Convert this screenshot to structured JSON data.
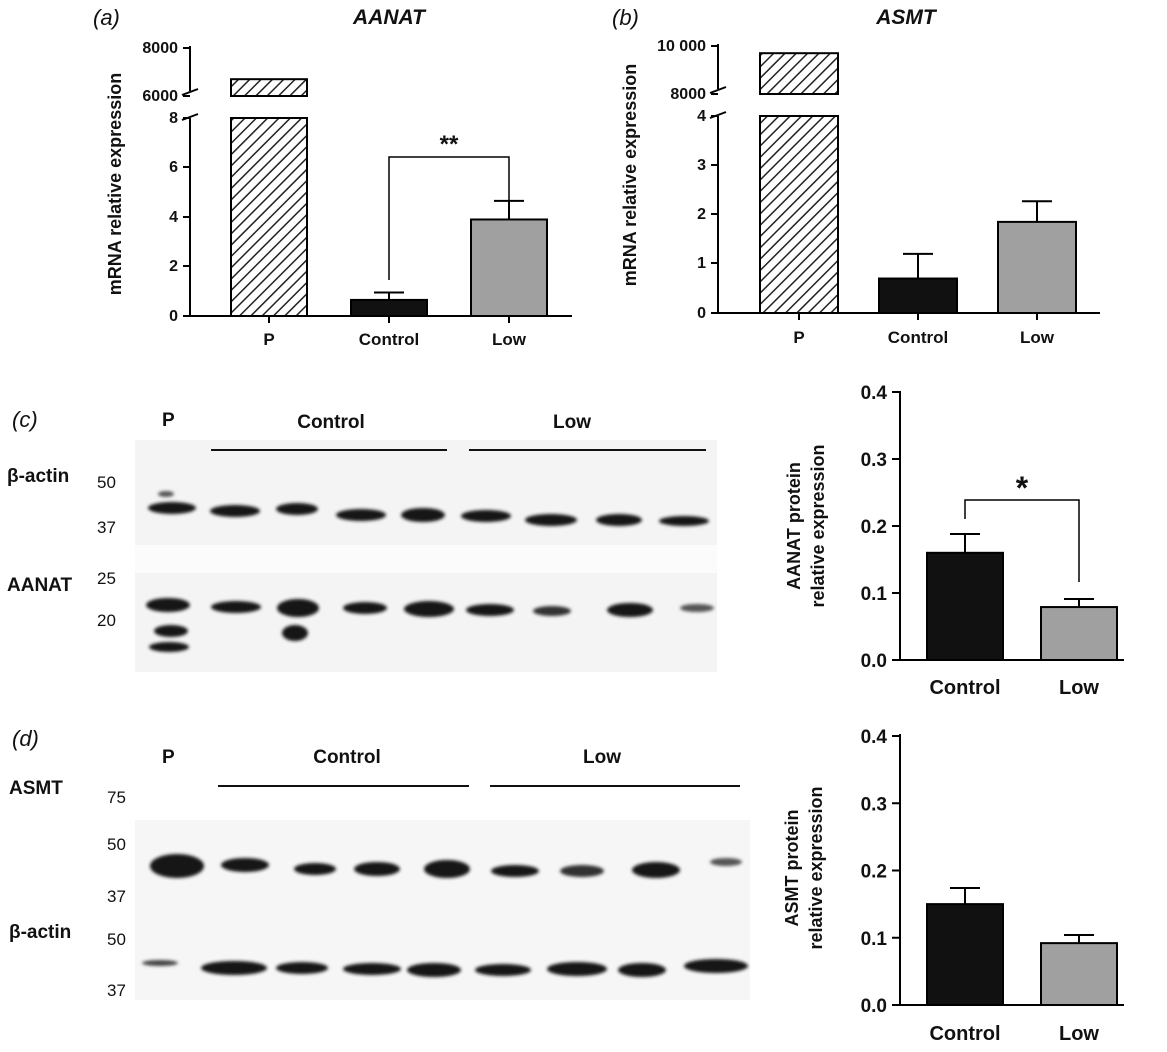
{
  "colors": {
    "control": "#111111",
    "low": "#a0a0a0",
    "hatch": "#222222",
    "axis": "#000000",
    "blot_bg": "#f4f4f4"
  },
  "chart_data": [
    {
      "panel": "(a)",
      "type": "bar",
      "title": "AANAT",
      "ylabel": "mRNA relative expression",
      "categories": [
        "P",
        "Control",
        "Low"
      ],
      "values": [
        6700,
        0.65,
        3.9
      ],
      "errors": [
        null,
        0.3,
        0.75
      ],
      "broken_axis": {
        "lower_ticks": [
          "0",
          "2",
          "4",
          "6",
          "8"
        ],
        "upper_ticks": [
          "6000",
          "8000"
        ]
      },
      "significance": "**"
    },
    {
      "panel": "(b)",
      "type": "bar",
      "title": "ASMT",
      "ylabel": "mRNA relative expression",
      "categories": [
        "P",
        "Control",
        "Low"
      ],
      "values": [
        9700,
        0.7,
        1.85
      ],
      "errors": [
        null,
        0.5,
        0.42
      ],
      "broken_axis": {
        "lower_ticks": [
          "0",
          "1",
          "2",
          "3",
          "4"
        ],
        "upper_ticks": [
          "8000",
          "10 000"
        ]
      }
    },
    {
      "panel": "(c)",
      "type": "bar",
      "ylabel_line1": "AANAT protein",
      "ylabel_line2": "relative expression",
      "categories": [
        "Control",
        "Low"
      ],
      "values": [
        0.16,
        0.079
      ],
      "errors": [
        0.028,
        0.012
      ],
      "ylim": [
        0,
        0.4
      ],
      "ticks": [
        "0.0",
        "0.1",
        "0.2",
        "0.3",
        "0.4"
      ],
      "significance": "*"
    },
    {
      "panel": "(d)",
      "type": "bar",
      "ylabel_line1": "ASMT protein",
      "ylabel_line2": "relative expression",
      "categories": [
        "Control",
        "Low"
      ],
      "values": [
        0.15,
        0.092
      ],
      "errors": [
        0.024,
        0.012
      ],
      "ylim": [
        0,
        0.4
      ],
      "ticks": [
        "0.0",
        "0.1",
        "0.2",
        "0.3",
        "0.4"
      ]
    }
  ],
  "blot_c": {
    "panel": "(c)",
    "lane_p": "P",
    "group1": "Control",
    "group2": "Low",
    "row1_label": "β-actin",
    "row2_label": "AANAT",
    "markers": [
      "50",
      "37",
      "25",
      "20"
    ]
  },
  "blot_d": {
    "panel": "(d)",
    "lane_p": "P",
    "group1": "Control",
    "group2": "Low",
    "row1_label": "ASMT",
    "row2_label": "β-actin",
    "markers": [
      "75",
      "50",
      "37",
      "50",
      "37"
    ]
  }
}
